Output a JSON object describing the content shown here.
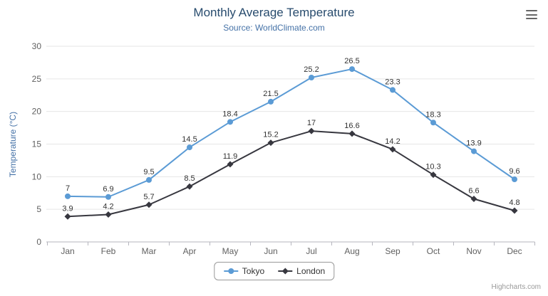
{
  "credits": {
    "label": "Highcharts.com"
  },
  "icons": {
    "context_menu": "hamburger-icon"
  },
  "colors": {
    "title": "#274b6d",
    "subtitle": "#4572a7",
    "axis_labels": "#606060",
    "axis_title": "#4572a7",
    "gridline": "#e6e6e6",
    "axis_line": "#b6b6be",
    "data_label": "#333333",
    "legend_border": "#999999",
    "credits": "#999999"
  },
  "chart_data": {
    "type": "line",
    "title": "Monthly Average Temperature",
    "subtitle": "Source: WorldClimate.com",
    "categories": [
      "Jan",
      "Feb",
      "Mar",
      "Apr",
      "May",
      "Jun",
      "Jul",
      "Aug",
      "Sep",
      "Oct",
      "Nov",
      "Dec"
    ],
    "series": [
      {
        "name": "Tokyo",
        "color": "#5b9bd5",
        "marker": "circle",
        "values": [
          7,
          6.9,
          9.5,
          14.5,
          18.4,
          21.5,
          25.2,
          26.5,
          23.3,
          18.3,
          13.9,
          9.6
        ]
      },
      {
        "name": "London",
        "color": "#37373f",
        "marker": "diamond",
        "values": [
          3.9,
          4.2,
          5.7,
          8.5,
          11.9,
          15.2,
          17,
          16.6,
          14.2,
          10.3,
          6.6,
          4.8
        ]
      }
    ],
    "xlabel": "",
    "ylabel": "Temperature (°C)",
    "ylim": [
      0,
      30
    ],
    "ytick_interval": 5,
    "grid": true,
    "data_labels": true,
    "legend_position": "bottom"
  }
}
